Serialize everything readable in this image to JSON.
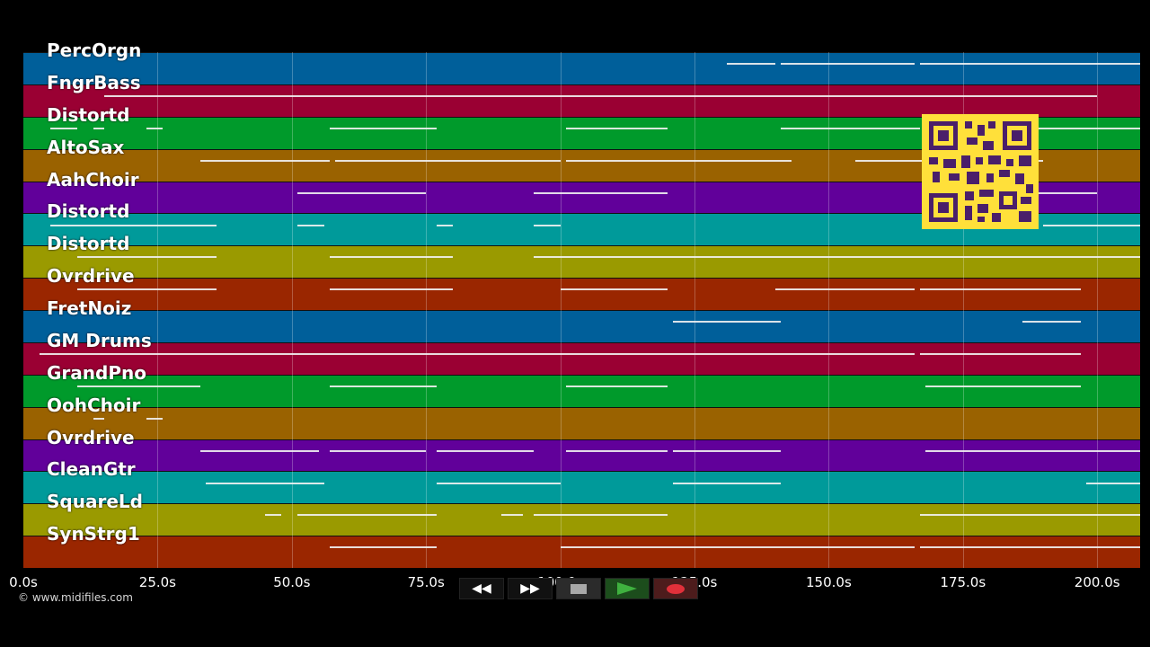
{
  "tracks": [
    {
      "label": "PercOrgn",
      "color": "#005f9a"
    },
    {
      "label": "FngrBass",
      "color": "#9a0033"
    },
    {
      "label": "Distortd",
      "color": "#009a2b"
    },
    {
      "label": "AltoSax",
      "color": "#9a6200"
    },
    {
      "label": "AahChoir",
      "color": "#61009a"
    },
    {
      "label": "Distortd",
      "color": "#009a9a"
    },
    {
      "label": "Distortd",
      "color": "#9a9a00"
    },
    {
      "label": "Ovrdrive",
      "color": "#9a2600"
    },
    {
      "label": "FretNoiz",
      "color": "#005f9a"
    },
    {
      "label": "GM Drums",
      "color": "#9a0033"
    },
    {
      "label": "GrandPno",
      "color": "#009a2b"
    },
    {
      "label": "OohChoir",
      "color": "#9a6200"
    },
    {
      "label": "Ovrdrive",
      "color": "#61009a"
    },
    {
      "label": "CleanGtr",
      "color": "#009a9a"
    },
    {
      "label": "SquareLd",
      "color": "#9a9a00"
    },
    {
      "label": "SynStrg1",
      "color": "#9a2600"
    }
  ],
  "time_axis": {
    "min_seconds": 0,
    "max_seconds": 208,
    "ticks": [
      {
        "value": 0,
        "label": "0.0s"
      },
      {
        "value": 25,
        "label": "25.0s"
      },
      {
        "value": 50,
        "label": "50.0s"
      },
      {
        "value": 75,
        "label": "75.0s"
      },
      {
        "value": 100,
        "label": "100.0s"
      },
      {
        "value": 125,
        "label": "125.0s"
      },
      {
        "value": 150,
        "label": "150.0s"
      },
      {
        "value": 175,
        "label": "175.0s"
      },
      {
        "value": 200,
        "label": "200.0s"
      }
    ]
  },
  "note_segments": [
    {
      "track": 0,
      "start": 131,
      "end": 140
    },
    {
      "track": 0,
      "start": 141,
      "end": 166
    },
    {
      "track": 0,
      "start": 167,
      "end": 208
    },
    {
      "track": 1,
      "start": 15,
      "end": 60
    },
    {
      "track": 1,
      "start": 60,
      "end": 120
    },
    {
      "track": 1,
      "start": 120,
      "end": 200
    },
    {
      "track": 2,
      "start": 5,
      "end": 10
    },
    {
      "track": 2,
      "start": 13,
      "end": 15
    },
    {
      "track": 2,
      "start": 23,
      "end": 26
    },
    {
      "track": 2,
      "start": 57,
      "end": 77
    },
    {
      "track": 2,
      "start": 101,
      "end": 120
    },
    {
      "track": 2,
      "start": 141,
      "end": 167
    },
    {
      "track": 2,
      "start": 172,
      "end": 208
    },
    {
      "track": 3,
      "start": 33,
      "end": 57
    },
    {
      "track": 3,
      "start": 58,
      "end": 100
    },
    {
      "track": 3,
      "start": 101,
      "end": 143
    },
    {
      "track": 3,
      "start": 155,
      "end": 190
    },
    {
      "track": 4,
      "start": 51,
      "end": 75
    },
    {
      "track": 4,
      "start": 95,
      "end": 120
    },
    {
      "track": 4,
      "start": 168,
      "end": 200
    },
    {
      "track": 5,
      "start": 5,
      "end": 36
    },
    {
      "track": 5,
      "start": 51,
      "end": 56
    },
    {
      "track": 5,
      "start": 77,
      "end": 80
    },
    {
      "track": 5,
      "start": 95,
      "end": 100
    },
    {
      "track": 5,
      "start": 190,
      "end": 208
    },
    {
      "track": 6,
      "start": 10,
      "end": 36
    },
    {
      "track": 6,
      "start": 57,
      "end": 80
    },
    {
      "track": 6,
      "start": 95,
      "end": 208
    },
    {
      "track": 7,
      "start": 10,
      "end": 36
    },
    {
      "track": 7,
      "start": 57,
      "end": 80
    },
    {
      "track": 7,
      "start": 100,
      "end": 120
    },
    {
      "track": 7,
      "start": 140,
      "end": 166
    },
    {
      "track": 7,
      "start": 167,
      "end": 197
    },
    {
      "track": 8,
      "start": 121,
      "end": 141
    },
    {
      "track": 8,
      "start": 186,
      "end": 197
    },
    {
      "track": 9,
      "start": 3,
      "end": 57
    },
    {
      "track": 9,
      "start": 57,
      "end": 100
    },
    {
      "track": 9,
      "start": 100,
      "end": 166
    },
    {
      "track": 9,
      "start": 167,
      "end": 197
    },
    {
      "track": 10,
      "start": 10,
      "end": 33
    },
    {
      "track": 10,
      "start": 57,
      "end": 77
    },
    {
      "track": 10,
      "start": 101,
      "end": 120
    },
    {
      "track": 10,
      "start": 168,
      "end": 197
    },
    {
      "track": 11,
      "start": 13,
      "end": 15
    },
    {
      "track": 11,
      "start": 23,
      "end": 26
    },
    {
      "track": 12,
      "start": 33,
      "end": 55
    },
    {
      "track": 12,
      "start": 57,
      "end": 75
    },
    {
      "track": 12,
      "start": 77,
      "end": 95
    },
    {
      "track": 12,
      "start": 101,
      "end": 120
    },
    {
      "track": 12,
      "start": 121,
      "end": 141
    },
    {
      "track": 12,
      "start": 168,
      "end": 208
    },
    {
      "track": 13,
      "start": 34,
      "end": 56
    },
    {
      "track": 13,
      "start": 77,
      "end": 100
    },
    {
      "track": 13,
      "start": 121,
      "end": 141
    },
    {
      "track": 13,
      "start": 198,
      "end": 208
    },
    {
      "track": 14,
      "start": 45,
      "end": 48
    },
    {
      "track": 14,
      "start": 51,
      "end": 77
    },
    {
      "track": 14,
      "start": 89,
      "end": 93
    },
    {
      "track": 14,
      "start": 95,
      "end": 120
    },
    {
      "track": 14,
      "start": 167,
      "end": 208
    },
    {
      "track": 15,
      "start": 57,
      "end": 77
    },
    {
      "track": 15,
      "start": 100,
      "end": 166
    },
    {
      "track": 15,
      "start": 167,
      "end": 208
    }
  ],
  "copyright": "© www.midifiles.com",
  "transport": {
    "rewind_icon": "rewind-icon",
    "forward_icon": "fast-forward-icon",
    "stop_icon": "stop-icon",
    "play_icon": "play-icon",
    "record_icon": "record-icon",
    "play_color": "#3fb13f",
    "record_color": "#e0303a"
  },
  "qr_color": "#ffe03a"
}
